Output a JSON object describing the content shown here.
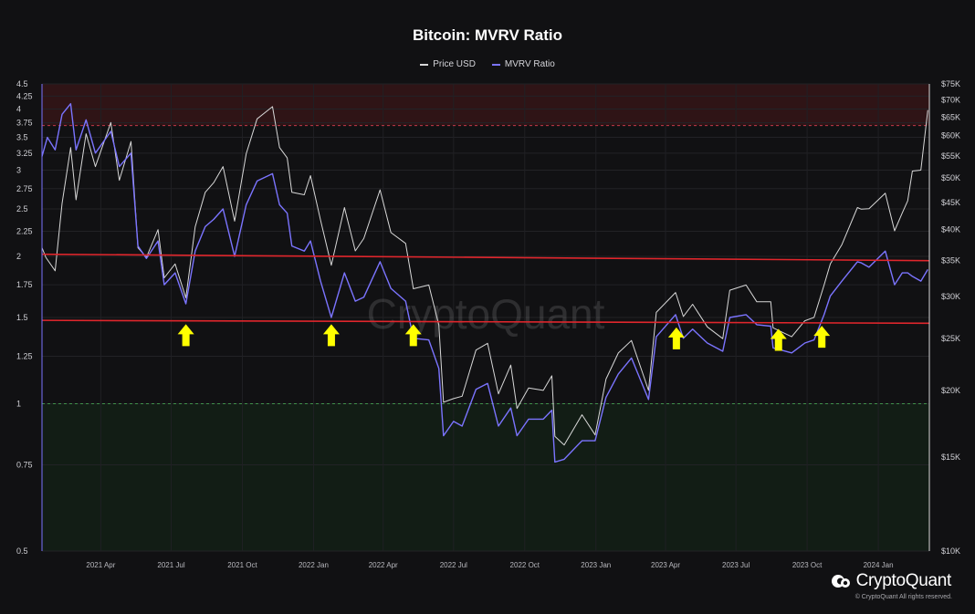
{
  "chart_data": {
    "type": "line",
    "title": "Bitcoin: MVRV Ratio",
    "watermark": "CryptoQuant",
    "left_axis": {
      "scale": "log",
      "ylim": [
        0.5,
        4.5
      ],
      "ticks": [
        "0.5",
        "0.75",
        "1",
        "1.25",
        "1.5",
        "1.75",
        "2",
        "2.25",
        "2.5",
        "2.75",
        "3",
        "3.25",
        "3.5",
        "3.75",
        "4",
        "4.25",
        "4.5"
      ]
    },
    "right_axis": {
      "scale": "log",
      "ylim": [
        10000,
        75000
      ],
      "ticks": [
        "$10K",
        "$15K",
        "$20K",
        "$25K",
        "$30K",
        "$35K",
        "$40K",
        "$45K",
        "$50K",
        "$55K",
        "$60K",
        "$65K",
        "$70K",
        "$75K"
      ]
    },
    "x_axis": {
      "range": [
        "2021-01-15",
        "2024-03-07"
      ],
      "ticks": [
        {
          "date": "2021-04-01",
          "label": "2021 Apr"
        },
        {
          "date": "2021-07-01",
          "label": "2021 Jul"
        },
        {
          "date": "2021-10-01",
          "label": "2021 Oct"
        },
        {
          "date": "2022-01-01",
          "label": "2022 Jan"
        },
        {
          "date": "2022-04-01",
          "label": "2022 Apr"
        },
        {
          "date": "2022-07-01",
          "label": "2022 Jul"
        },
        {
          "date": "2022-10-01",
          "label": "2022 Oct"
        },
        {
          "date": "2023-01-01",
          "label": "2023 Jan"
        },
        {
          "date": "2023-04-01",
          "label": "2023 Apr"
        },
        {
          "date": "2023-07-01",
          "label": "2023 Jul"
        },
        {
          "date": "2023-10-01",
          "label": "2023 Oct"
        },
        {
          "date": "2024-01-01",
          "label": "2024 Jan"
        }
      ]
    },
    "bands": [
      {
        "name": "overvalued",
        "from": 3.7,
        "to": 4.5,
        "color": "#3a1618"
      },
      {
        "name": "undervalued",
        "from": 0.5,
        "to": 1.0,
        "color": "#132117"
      }
    ],
    "threshold_lines": [
      {
        "value": 3.7,
        "color": "#c0394a",
        "style": "dashed"
      },
      {
        "value": 1.0,
        "color": "#3f8f4a",
        "style": "dashed"
      }
    ],
    "support_resistance_lines": [
      {
        "from": {
          "date": "2021-01-15",
          "mvrv": 2.02
        },
        "to": {
          "date": "2024-03-07",
          "mvrv": 1.96
        },
        "color": "#e0262c"
      },
      {
        "from": {
          "date": "2021-01-15",
          "mvrv": 1.48
        },
        "to": {
          "date": "2024-03-07",
          "mvrv": 1.46
        },
        "color": "#e0262c"
      }
    ],
    "annotations": [
      {
        "type": "arrow-up",
        "date": "2021-07-20",
        "mvrv": 1.38,
        "color": "#ffff00"
      },
      {
        "type": "arrow-up",
        "date": "2022-01-24",
        "mvrv": 1.38,
        "color": "#ffff00"
      },
      {
        "type": "arrow-up",
        "date": "2022-05-10",
        "mvrv": 1.38,
        "color": "#ffff00"
      },
      {
        "type": "arrow-up",
        "date": "2023-04-15",
        "mvrv": 1.36,
        "color": "#ffff00"
      },
      {
        "type": "arrow-up",
        "date": "2023-08-25",
        "mvrv": 1.35,
        "color": "#ffff00"
      },
      {
        "type": "arrow-up",
        "date": "2023-10-20",
        "mvrv": 1.37,
        "color": "#ffff00"
      }
    ],
    "series": [
      {
        "name": "Price USD",
        "axis": "right",
        "color": "#d8d8d8",
        "points": [
          [
            "2021-01-15",
            37000
          ],
          [
            "2021-01-20",
            35500
          ],
          [
            "2021-02-01",
            33500
          ],
          [
            "2021-02-10",
            44800
          ],
          [
            "2021-02-21",
            57000
          ],
          [
            "2021-02-28",
            45500
          ],
          [
            "2021-03-13",
            60500
          ],
          [
            "2021-03-25",
            52500
          ],
          [
            "2021-04-14",
            63500
          ],
          [
            "2021-04-25",
            49500
          ],
          [
            "2021-05-10",
            58500
          ],
          [
            "2021-05-19",
            37000
          ],
          [
            "2021-05-30",
            35500
          ],
          [
            "2021-06-14",
            40000
          ],
          [
            "2021-06-22",
            32500
          ],
          [
            "2021-07-06",
            34500
          ],
          [
            "2021-07-20",
            29800
          ],
          [
            "2021-08-01",
            40500
          ],
          [
            "2021-08-14",
            47000
          ],
          [
            "2021-08-25",
            49000
          ],
          [
            "2021-09-06",
            52500
          ],
          [
            "2021-09-21",
            41500
          ],
          [
            "2021-10-06",
            55500
          ],
          [
            "2021-10-20",
            64500
          ],
          [
            "2021-11-09",
            68000
          ],
          [
            "2021-11-18",
            57000
          ],
          [
            "2021-11-28",
            54500
          ],
          [
            "2021-12-04",
            47000
          ],
          [
            "2021-12-20",
            46500
          ],
          [
            "2021-12-28",
            50500
          ],
          [
            "2022-01-10",
            41700
          ],
          [
            "2022-01-24",
            34300
          ],
          [
            "2022-02-10",
            44000
          ],
          [
            "2022-02-24",
            36500
          ],
          [
            "2022-03-07",
            38500
          ],
          [
            "2022-03-28",
            47500
          ],
          [
            "2022-04-11",
            39500
          ],
          [
            "2022-04-30",
            37700
          ],
          [
            "2022-05-10",
            31000
          ],
          [
            "2022-05-30",
            31500
          ],
          [
            "2022-06-12",
            26500
          ],
          [
            "2022-06-18",
            19000
          ],
          [
            "2022-07-01",
            19300
          ],
          [
            "2022-07-12",
            19500
          ],
          [
            "2022-07-30",
            23800
          ],
          [
            "2022-08-14",
            24500
          ],
          [
            "2022-08-28",
            19700
          ],
          [
            "2022-09-13",
            22300
          ],
          [
            "2022-09-21",
            18500
          ],
          [
            "2022-10-06",
            20200
          ],
          [
            "2022-10-25",
            20000
          ],
          [
            "2022-11-05",
            21300
          ],
          [
            "2022-11-09",
            16400
          ],
          [
            "2022-11-21",
            15800
          ],
          [
            "2022-12-14",
            18000
          ],
          [
            "2022-12-31",
            16500
          ],
          [
            "2023-01-14",
            21000
          ],
          [
            "2023-01-30",
            23500
          ],
          [
            "2023-02-16",
            24800
          ],
          [
            "2023-03-10",
            20000
          ],
          [
            "2023-03-20",
            28000
          ],
          [
            "2023-04-14",
            30500
          ],
          [
            "2023-04-24",
            27500
          ],
          [
            "2023-05-06",
            29000
          ],
          [
            "2023-05-25",
            26300
          ],
          [
            "2023-06-14",
            25000
          ],
          [
            "2023-06-23",
            30800
          ],
          [
            "2023-07-14",
            31500
          ],
          [
            "2023-07-28",
            29300
          ],
          [
            "2023-08-15",
            29300
          ],
          [
            "2023-08-18",
            26200
          ],
          [
            "2023-09-11",
            25200
          ],
          [
            "2023-09-28",
            27000
          ],
          [
            "2023-10-10",
            27400
          ],
          [
            "2023-10-23",
            31500
          ],
          [
            "2023-10-31",
            34500
          ],
          [
            "2023-11-15",
            37500
          ],
          [
            "2023-12-05",
            44000
          ],
          [
            "2023-12-10",
            43700
          ],
          [
            "2023-12-20",
            43800
          ],
          [
            "2024-01-10",
            46800
          ],
          [
            "2024-01-22",
            39800
          ],
          [
            "2024-02-01",
            43000
          ],
          [
            "2024-02-08",
            45300
          ],
          [
            "2024-02-14",
            51500
          ],
          [
            "2024-02-25",
            51700
          ],
          [
            "2024-03-05",
            67000
          ]
        ]
      },
      {
        "name": "MVRV Ratio",
        "axis": "left",
        "color": "#7b74ff",
        "points": [
          [
            "2021-01-15",
            3.2
          ],
          [
            "2021-01-22",
            3.5
          ],
          [
            "2021-02-01",
            3.3
          ],
          [
            "2021-02-10",
            3.9
          ],
          [
            "2021-02-21",
            4.1
          ],
          [
            "2021-02-28",
            3.3
          ],
          [
            "2021-03-13",
            3.8
          ],
          [
            "2021-03-25",
            3.25
          ],
          [
            "2021-04-14",
            3.6
          ],
          [
            "2021-04-25",
            3.05
          ],
          [
            "2021-05-10",
            3.25
          ],
          [
            "2021-05-19",
            2.1
          ],
          [
            "2021-05-30",
            1.98
          ],
          [
            "2021-06-14",
            2.15
          ],
          [
            "2021-06-22",
            1.75
          ],
          [
            "2021-07-06",
            1.85
          ],
          [
            "2021-07-20",
            1.6
          ],
          [
            "2021-08-01",
            2.05
          ],
          [
            "2021-08-14",
            2.3
          ],
          [
            "2021-08-25",
            2.38
          ],
          [
            "2021-09-06",
            2.5
          ],
          [
            "2021-09-21",
            2.0
          ],
          [
            "2021-10-06",
            2.55
          ],
          [
            "2021-10-20",
            2.85
          ],
          [
            "2021-11-09",
            2.95
          ],
          [
            "2021-11-18",
            2.55
          ],
          [
            "2021-11-28",
            2.45
          ],
          [
            "2021-12-04",
            2.1
          ],
          [
            "2021-12-20",
            2.05
          ],
          [
            "2021-12-28",
            2.15
          ],
          [
            "2022-01-10",
            1.78
          ],
          [
            "2022-01-24",
            1.5
          ],
          [
            "2022-02-10",
            1.85
          ],
          [
            "2022-02-24",
            1.62
          ],
          [
            "2022-03-07",
            1.65
          ],
          [
            "2022-03-28",
            1.95
          ],
          [
            "2022-04-11",
            1.72
          ],
          [
            "2022-04-30",
            1.62
          ],
          [
            "2022-05-10",
            1.36
          ],
          [
            "2022-05-30",
            1.35
          ],
          [
            "2022-06-12",
            1.18
          ],
          [
            "2022-06-18",
            0.86
          ],
          [
            "2022-07-01",
            0.92
          ],
          [
            "2022-07-12",
            0.9
          ],
          [
            "2022-07-30",
            1.07
          ],
          [
            "2022-08-14",
            1.1
          ],
          [
            "2022-08-28",
            0.9
          ],
          [
            "2022-09-13",
            0.98
          ],
          [
            "2022-09-21",
            0.86
          ],
          [
            "2022-10-06",
            0.93
          ],
          [
            "2022-10-25",
            0.93
          ],
          [
            "2022-11-05",
            0.97
          ],
          [
            "2022-11-09",
            0.76
          ],
          [
            "2022-11-21",
            0.77
          ],
          [
            "2022-12-14",
            0.84
          ],
          [
            "2022-12-31",
            0.84
          ],
          [
            "2023-01-14",
            1.03
          ],
          [
            "2023-01-30",
            1.15
          ],
          [
            "2023-02-16",
            1.24
          ],
          [
            "2023-03-10",
            1.02
          ],
          [
            "2023-03-20",
            1.37
          ],
          [
            "2023-04-14",
            1.52
          ],
          [
            "2023-04-24",
            1.36
          ],
          [
            "2023-05-06",
            1.42
          ],
          [
            "2023-05-25",
            1.33
          ],
          [
            "2023-06-14",
            1.28
          ],
          [
            "2023-06-23",
            1.5
          ],
          [
            "2023-07-14",
            1.52
          ],
          [
            "2023-07-28",
            1.45
          ],
          [
            "2023-08-15",
            1.44
          ],
          [
            "2023-08-18",
            1.3
          ],
          [
            "2023-09-11",
            1.27
          ],
          [
            "2023-09-28",
            1.33
          ],
          [
            "2023-10-10",
            1.35
          ],
          [
            "2023-10-23",
            1.52
          ],
          [
            "2023-10-31",
            1.66
          ],
          [
            "2023-11-15",
            1.78
          ],
          [
            "2023-12-05",
            1.95
          ],
          [
            "2023-12-10",
            1.94
          ],
          [
            "2023-12-20",
            1.9
          ],
          [
            "2024-01-10",
            2.05
          ],
          [
            "2024-01-22",
            1.75
          ],
          [
            "2024-02-01",
            1.85
          ],
          [
            "2024-02-08",
            1.85
          ],
          [
            "2024-02-14",
            1.82
          ],
          [
            "2024-02-25",
            1.78
          ],
          [
            "2024-03-05",
            1.88
          ]
        ]
      }
    ],
    "legend": {
      "placement": "top-center"
    }
  },
  "branding": {
    "name": "CryptoQuant",
    "copyright": "© CryptoQuant All rights reserved."
  }
}
